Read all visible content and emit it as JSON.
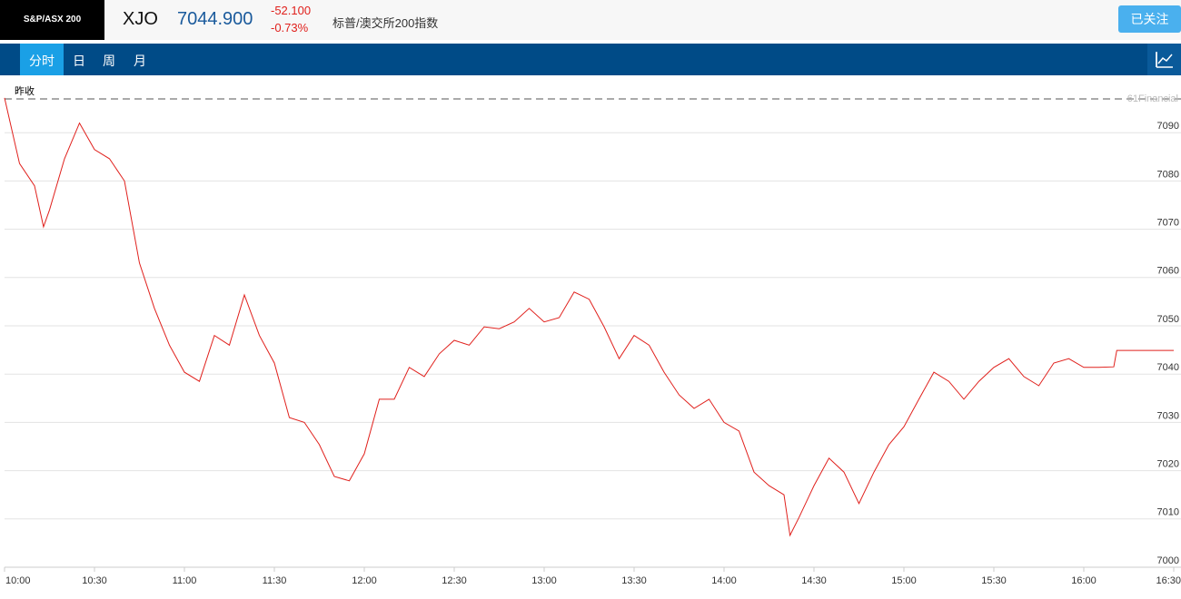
{
  "header": {
    "logo": "S&P/ASX 200",
    "symbol": "XJO",
    "price": "7044.900",
    "change": "-52.100",
    "change_pct": "-0.73%",
    "name": "标普/澳交所200指数",
    "follow_button": "已关注"
  },
  "tabs": [
    "分时",
    "日",
    "周",
    "月"
  ],
  "chart_data": {
    "type": "line",
    "color": "#e0201c",
    "grid": true,
    "prev_close_label": "昨收",
    "prev_close": 7097.0,
    "watermark": "61Financial",
    "x": [
      "10:00",
      "10:05",
      "10:10",
      "10:13",
      "10:15",
      "10:20",
      "10:25",
      "10:30",
      "10:35",
      "10:40",
      "10:45",
      "10:50",
      "10:55",
      "11:00",
      "11:05",
      "11:10",
      "11:15",
      "11:20",
      "11:25",
      "11:30",
      "11:35",
      "11:40",
      "11:45",
      "11:50",
      "11:55",
      "12:00",
      "12:05",
      "12:10",
      "12:15",
      "12:20",
      "12:25",
      "12:30",
      "12:35",
      "12:40",
      "12:45",
      "12:50",
      "12:55",
      "13:00",
      "13:05",
      "13:10",
      "13:15",
      "13:20",
      "13:25",
      "13:30",
      "13:35",
      "13:40",
      "13:45",
      "13:50",
      "13:55",
      "14:00",
      "14:05",
      "14:10",
      "14:15",
      "14:20",
      "14:22",
      "14:25",
      "14:30",
      "14:35",
      "14:40",
      "14:45",
      "14:50",
      "14:55",
      "15:00",
      "15:05",
      "15:10",
      "15:15",
      "15:20",
      "15:25",
      "15:30",
      "15:35",
      "15:40",
      "15:45",
      "15:50",
      "15:55",
      "16:00",
      "16:05",
      "16:10",
      "16:11",
      "16:30"
    ],
    "values": [
      7097.2,
      7083.6,
      7079,
      7070.5,
      7074,
      7084.6,
      7092,
      7086.5,
      7084.6,
      7080,
      7063,
      7053.6,
      7046,
      7040.4,
      7038.5,
      7048,
      7046,
      7056.4,
      7048,
      7042.3,
      7031,
      7030,
      7025.4,
      7018.8,
      7017.9,
      7023.5,
      7034.8,
      7034.8,
      7041.4,
      7039.5,
      7044.2,
      7047,
      7046,
      7049.8,
      7049.4,
      7050.8,
      7053.6,
      7050.8,
      7051.7,
      7057,
      7055.5,
      7049.8,
      7043.2,
      7048,
      7046,
      7040.4,
      7035.7,
      7032.9,
      7034.8,
      7030,
      7028.2,
      7019.7,
      7016.9,
      7015,
      7006.6,
      7010.3,
      7016.9,
      7022.6,
      7019.7,
      7013.2,
      7019.7,
      7025.4,
      7029.1,
      7034.8,
      7040.4,
      7038.5,
      7034.8,
      7038.5,
      7041.4,
      7043.2,
      7039.5,
      7037.6,
      7042.3,
      7043.2,
      7041.4,
      7041.4,
      7041.5,
      7044.9,
      7044.9
    ],
    "xlim": [
      "10:00",
      "16:30"
    ],
    "xticks": [
      "10:00",
      "10:30",
      "11:00",
      "11:30",
      "12:00",
      "12:30",
      "13:00",
      "13:30",
      "14:00",
      "14:30",
      "15:00",
      "15:30",
      "16:00",
      "16:30"
    ],
    "ylim": [
      7000,
      7100
    ],
    "yticks": [
      7000,
      7010,
      7020,
      7030,
      7040,
      7050,
      7060,
      7070,
      7080,
      7090
    ]
  }
}
